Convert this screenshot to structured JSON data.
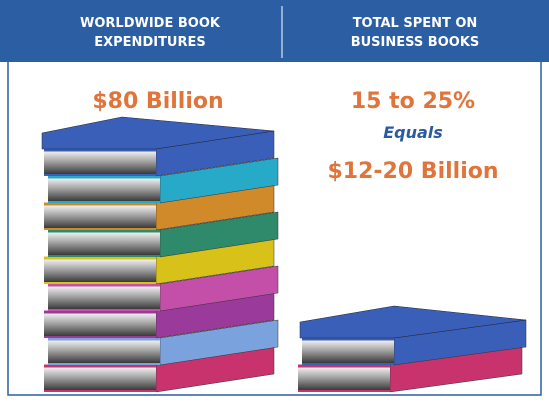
{
  "left": {
    "heading": [
      "WORLDWIDE BOOK",
      "EXPENDITURES"
    ],
    "amount": "$80 Billion"
  },
  "right": {
    "heading": [
      "TOTAL SPENT ON",
      "BUSINESS BOOKS"
    ],
    "share": "15 to 25%",
    "connector": "Equals",
    "amount": "$12-20 Billion"
  }
}
